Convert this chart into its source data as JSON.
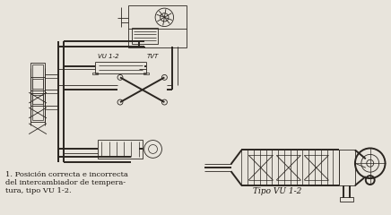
{
  "bg_color": "#e8e4dc",
  "fig_width": 4.36,
  "fig_height": 2.4,
  "dpi": 100,
  "caption_line1": "1. Posición correcta e incorrecta",
  "caption_line2": "del intercambiador de tempera-",
  "caption_line3": "tura, tipo VU 1-2.",
  "label_vu12": "VU 1-2",
  "label_tvt": "TVT",
  "label_tipo": "Tipo VU 1-2",
  "line_color": "#2a2520",
  "text_color": "#1a1510",
  "caption_fontsize": 6.0,
  "label_fontsize": 5.0,
  "tipo_fontsize": 6.5,
  "lw_pipe": 1.4,
  "lw_thin": 0.6,
  "lw_detail": 0.5
}
